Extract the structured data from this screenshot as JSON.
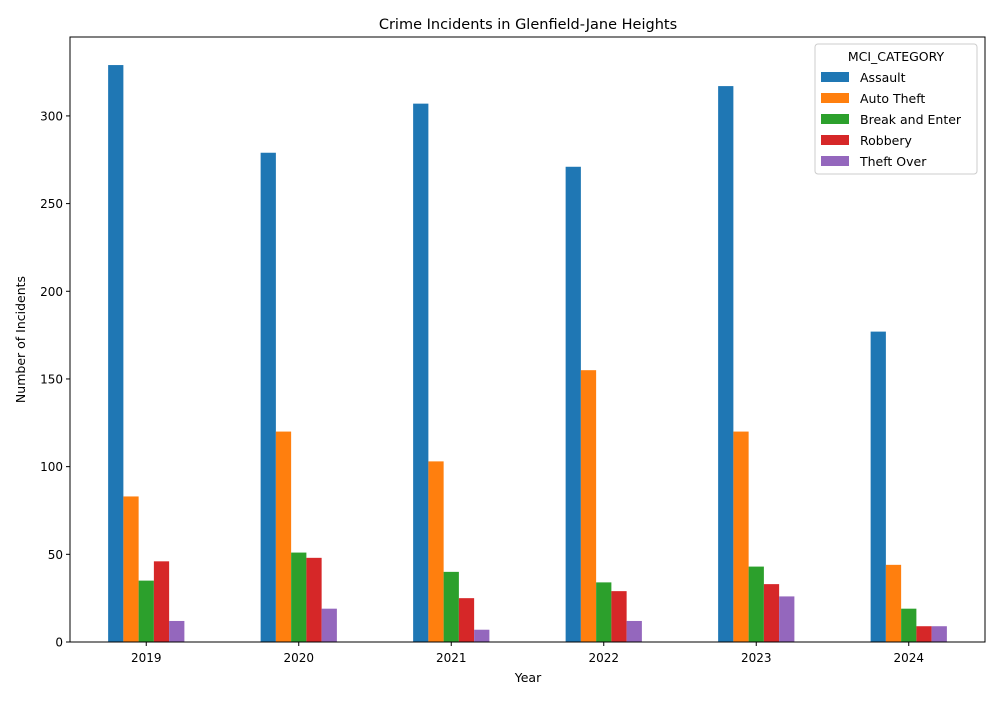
{
  "chart_data": {
    "type": "bar",
    "title": "Crime Incidents in Glenfield-Jane Heights",
    "xlabel": "Year",
    "ylabel": "Number of Incidents",
    "categories": [
      "2019",
      "2020",
      "2021",
      "2022",
      "2023",
      "2024"
    ],
    "ylim": [
      0,
      345
    ],
    "yticks": [
      0,
      50,
      100,
      150,
      200,
      250,
      300
    ],
    "grid": false,
    "legend": {
      "title": "MCI_CATEGORY",
      "placement": "top-right"
    },
    "series": [
      {
        "name": "Assault",
        "color": "#1f77b4",
        "values": [
          329,
          279,
          307,
          271,
          317,
          177
        ]
      },
      {
        "name": "Auto Theft",
        "color": "#ff7f0e",
        "values": [
          83,
          120,
          103,
          155,
          120,
          44
        ]
      },
      {
        "name": "Break and Enter",
        "color": "#2ca02c",
        "values": [
          35,
          51,
          40,
          34,
          43,
          19
        ]
      },
      {
        "name": "Robbery",
        "color": "#d62728",
        "values": [
          46,
          48,
          25,
          29,
          33,
          9
        ]
      },
      {
        "name": "Theft Over",
        "color": "#9467bd",
        "values": [
          12,
          19,
          7,
          12,
          26,
          9
        ]
      }
    ]
  }
}
